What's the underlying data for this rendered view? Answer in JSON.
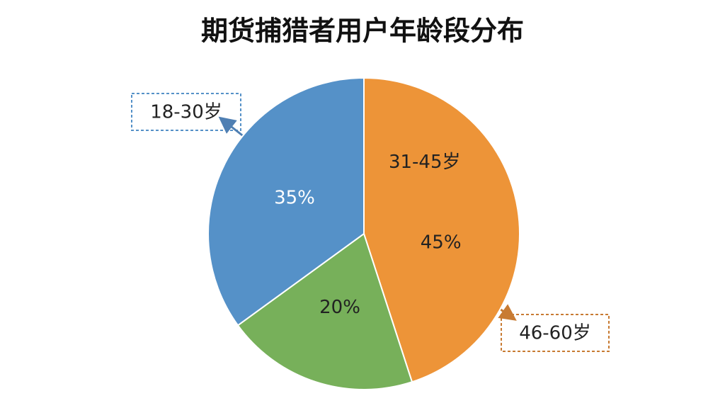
{
  "chart_data": {
    "type": "pie",
    "title": "期货捕猎者用户年龄段分布",
    "categories": [
      "31-45岁",
      null,
      "18-30岁"
    ],
    "values": [
      45,
      20,
      35
    ],
    "value_labels": [
      "45%",
      "20%",
      "35%"
    ],
    "colors": [
      "#ed9438",
      "#77b05a",
      "#5591c8"
    ],
    "annotation": "46-60岁"
  }
}
